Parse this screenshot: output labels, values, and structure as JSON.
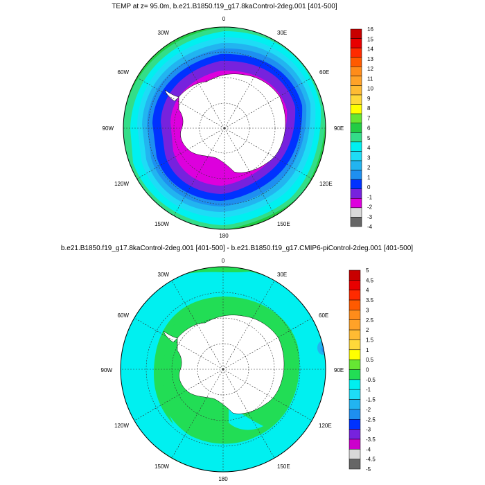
{
  "panels": [
    {
      "title": "TEMP at z=  95.0m, b.e21.B1850.f19_g17.8kaControl-2deg.001 [401-500]",
      "colorbar": {
        "labels": [
          "16",
          "15",
          "14",
          "13",
          "12",
          "11",
          "10",
          "9",
          "8",
          "7",
          "6",
          "5",
          "4",
          "3",
          "2",
          "1",
          "0",
          "-1",
          "-2",
          "-3",
          "-4"
        ],
        "colors": [
          "#c80000",
          "#e80000",
          "#ff2a00",
          "#ff5a00",
          "#ff8c1a",
          "#ffa228",
          "#ffbb33",
          "#ffd83a",
          "#ffff00",
          "#66e633",
          "#22cc44",
          "#33dd88",
          "#00f0f0",
          "#1edcf6",
          "#22b4f0",
          "#1e8ff0",
          "#0032ff",
          "#7722dd",
          "#dd00dd",
          "#d8d8d8",
          "#666666"
        ]
      },
      "lon_labels": [
        "0",
        "30E",
        "60E",
        "90E",
        "120E",
        "150E",
        "180",
        "150W",
        "120W",
        "90W",
        "60W",
        "30W"
      ]
    },
    {
      "title": "b.e21.B1850.f19_g17.8kaControl-2deg.001 [401-500] - b.e21.B1850.f19_g17.CMIP6-piControl-2deg.001 [401-500]",
      "colorbar": {
        "labels": [
          "5",
          "4.5",
          "4",
          "3.5",
          "3",
          "2.5",
          "2",
          "1.5",
          "1",
          "0.5",
          "0",
          "-0.5",
          "-1",
          "-1.5",
          "-2",
          "-2.5",
          "-3",
          "-3.5",
          "-4",
          "-4.5",
          "-5"
        ],
        "colors": [
          "#c80000",
          "#e80000",
          "#ff2a00",
          "#ff5a00",
          "#ff8c1a",
          "#ffa228",
          "#ffbb33",
          "#ffd83a",
          "#ffff00",
          "#66e633",
          "#22dd55",
          "#00f0f0",
          "#1edcf6",
          "#22b4f0",
          "#1e8ff0",
          "#0032ff",
          "#7722dd",
          "#cc00cc",
          "#d8d8d8",
          "#666666"
        ]
      },
      "lon_labels": [
        "0",
        "30E",
        "60E",
        "90E",
        "120E",
        "150E",
        "180",
        "150W",
        "120W",
        "90W",
        "60W",
        "30W"
      ]
    }
  ],
  "colors": {
    "land": "#ffffff",
    "contour": "#000000",
    "grid": "#333333"
  }
}
